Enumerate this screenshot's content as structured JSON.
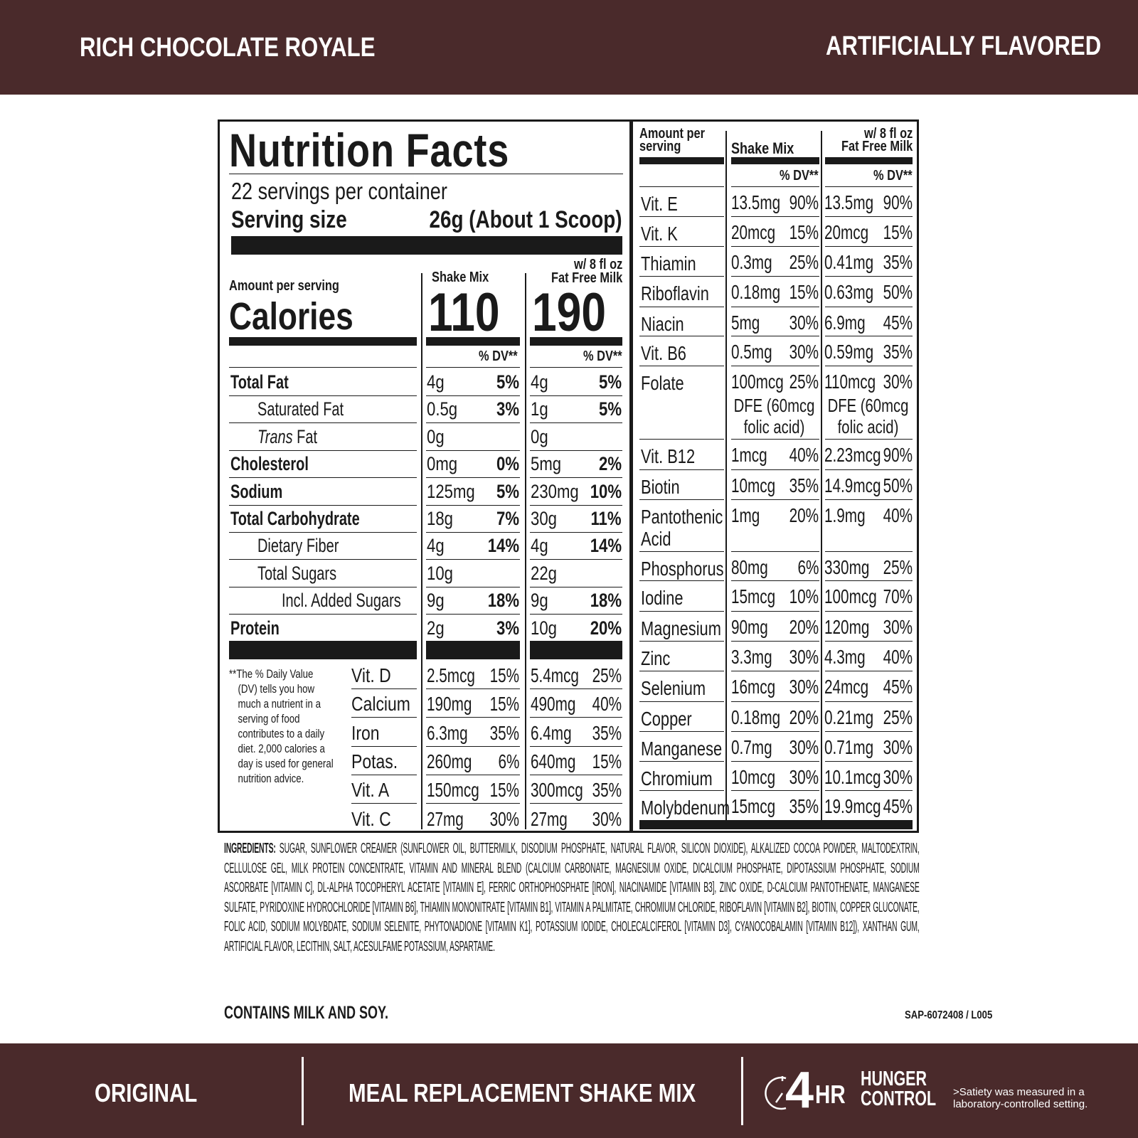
{
  "header": {
    "product_name": "RICH CHOCOLATE ROYALE",
    "flavor_note": "ARTIFICIALLY FLAVORED"
  },
  "label": {
    "title": "Nutrition Facts",
    "servings": "22 servings per container",
    "serving_size_label": "Serving size",
    "serving_size_value": "26g (About 1 Scoop)",
    "amount_per_serving": "Amount per serving",
    "calories_label": "Calories",
    "col_shake": "Shake Mix",
    "col_milk_line1": "w/ 8 fl oz",
    "col_milk_line2": "Fat Free Milk",
    "calories_shake": "110",
    "calories_milk": "190",
    "dv_header": "% DV**",
    "nutrients": [
      {
        "name": "Total Fat",
        "bold": true,
        "indent": 0,
        "shake": "4g",
        "shake_dv": "5%",
        "milk": "4g",
        "milk_dv": "5%"
      },
      {
        "name": "Saturated Fat",
        "bold": false,
        "indent": 1,
        "shake": "0.5g",
        "shake_dv": "3%",
        "milk": "1g",
        "milk_dv": "5%"
      },
      {
        "name": "Trans Fat",
        "italic_prefix": "Trans",
        "bold": false,
        "indent": 1,
        "shake": "0g",
        "shake_dv": "",
        "milk": "0g",
        "milk_dv": ""
      },
      {
        "name": "Cholesterol",
        "bold": true,
        "indent": 0,
        "shake": "0mg",
        "shake_dv": "0%",
        "milk": "5mg",
        "milk_dv": "2%"
      },
      {
        "name": "Sodium",
        "bold": true,
        "indent": 0,
        "shake": "125mg",
        "shake_dv": "5%",
        "milk": "230mg",
        "milk_dv": "10%"
      },
      {
        "name": "Total Carbohydrate",
        "bold": true,
        "indent": 0,
        "shake": "18g",
        "shake_dv": "7%",
        "milk": "30g",
        "milk_dv": "11%"
      },
      {
        "name": "Dietary Fiber",
        "bold": false,
        "indent": 1,
        "shake": "4g",
        "shake_dv": "14%",
        "milk": "4g",
        "milk_dv": "14%"
      },
      {
        "name": "Total Sugars",
        "bold": false,
        "indent": 1,
        "shake": "10g",
        "shake_dv": "",
        "milk": "22g",
        "milk_dv": ""
      },
      {
        "name": "Incl. Added Sugars",
        "bold": false,
        "indent": 2,
        "shake": "9g",
        "shake_dv": "18%",
        "milk": "9g",
        "milk_dv": "18%"
      },
      {
        "name": "Protein",
        "bold": true,
        "indent": 0,
        "shake": "2g",
        "shake_dv": "3%",
        "milk": "10g",
        "milk_dv": "20%"
      }
    ],
    "footnote": "**The % Daily Value (DV) tells you how much a nutrient in a serving of food contributes to a daily diet. 2,000 calories a day is used for general nutrition advice.",
    "vitamins_left": [
      {
        "name": "Vit. D",
        "shake": "2.5mcg",
        "shake_dv": "15%",
        "milk": "5.4mcg",
        "milk_dv": "25%"
      },
      {
        "name": "Calcium",
        "shake": "190mg",
        "shake_dv": "15%",
        "milk": "490mg",
        "milk_dv": "40%"
      },
      {
        "name": "Iron",
        "shake": "6.3mg",
        "shake_dv": "35%",
        "milk": "6.4mg",
        "milk_dv": "35%"
      },
      {
        "name": "Potas.",
        "shake": "260mg",
        "shake_dv": "6%",
        "milk": "640mg",
        "milk_dv": "15%"
      },
      {
        "name": "Vit. A",
        "shake": "150mcg",
        "shake_dv": "15%",
        "milk": "300mcg",
        "milk_dv": "35%"
      },
      {
        "name": "Vit. C",
        "shake": "27mg",
        "shake_dv": "30%",
        "milk": "27mg",
        "milk_dv": "30%"
      }
    ],
    "right_amount_per_serving_1": "Amount per",
    "right_amount_per_serving_2": "serving",
    "vitamins_right": [
      {
        "name": "Vit. E",
        "shake": "13.5mg",
        "shake_dv": "90%",
        "milk": "13.5mg",
        "milk_dv": "90%"
      },
      {
        "name": "Vit. K",
        "shake": "20mcg",
        "shake_dv": "15%",
        "milk": "20mcg",
        "milk_dv": "15%"
      },
      {
        "name": "Thiamin",
        "shake": "0.3mg",
        "shake_dv": "25%",
        "milk": "0.41mg",
        "milk_dv": "35%"
      },
      {
        "name": "Riboflavin",
        "shake": "0.18mg",
        "shake_dv": "15%",
        "milk": "0.63mg",
        "milk_dv": "50%"
      },
      {
        "name": "Niacin",
        "shake": "5mg",
        "shake_dv": "30%",
        "milk": "6.9mg",
        "milk_dv": "45%"
      },
      {
        "name": "Vit. B6",
        "shake": "0.5mg",
        "shake_dv": "30%",
        "milk": "0.59mg",
        "milk_dv": "35%"
      },
      {
        "name": "Folate",
        "shake": "100mcg",
        "shake_dv": "25%",
        "shake_extra": "DFE (60mcg folic acid)",
        "milk": "110mcg",
        "milk_dv": "30%",
        "milk_extra": "DFE (60mcg folic acid)"
      },
      {
        "name": "Vit. B12",
        "shake": "1mcg",
        "shake_dv": "40%",
        "milk": "2.23mcg",
        "milk_dv": "90%"
      },
      {
        "name": "Biotin",
        "shake": "10mcg",
        "shake_dv": "35%",
        "milk": "14.9mcg",
        "milk_dv": "50%"
      },
      {
        "name": "Pantothenic Acid",
        "shake": "1mg",
        "shake_dv": "20%",
        "milk": "1.9mg",
        "milk_dv": "40%"
      },
      {
        "name": "Phosphorus",
        "shake": "80mg",
        "shake_dv": "6%",
        "milk": "330mg",
        "milk_dv": "25%"
      },
      {
        "name": "Iodine",
        "shake": "15mcg",
        "shake_dv": "10%",
        "milk": "100mcg",
        "milk_dv": "70%"
      },
      {
        "name": "Magnesium",
        "shake": "90mg",
        "shake_dv": "20%",
        "milk": "120mg",
        "milk_dv": "30%"
      },
      {
        "name": "Zinc",
        "shake": "3.3mg",
        "shake_dv": "30%",
        "milk": "4.3mg",
        "milk_dv": "40%"
      },
      {
        "name": "Selenium",
        "shake": "16mcg",
        "shake_dv": "30%",
        "milk": "24mcg",
        "milk_dv": "45%"
      },
      {
        "name": "Copper",
        "shake": "0.18mg",
        "shake_dv": "20%",
        "milk": "0.21mg",
        "milk_dv": "25%"
      },
      {
        "name": "Manganese",
        "shake": "0.7mg",
        "shake_dv": "30%",
        "milk": "0.71mg",
        "milk_dv": "30%"
      },
      {
        "name": "Chromium",
        "shake": "10mcg",
        "shake_dv": "30%",
        "milk": "10.1mcg",
        "milk_dv": "30%"
      },
      {
        "name": "Molybdenum",
        "shake": "15mcg",
        "shake_dv": "35%",
        "milk": "19.9mcg",
        "milk_dv": "45%"
      }
    ]
  },
  "ingredients": {
    "label": "INGREDIENTS:",
    "text": "SUGAR, SUNFLOWER CREAMER (SUNFLOWER OIL, BUTTERMILK, DISODIUM PHOSPHATE, NATURAL FLAVOR, SILICON DIOXIDE), ALKALIZED COCOA POWDER, MALTODEXTRIN, CELLULOSE GEL, MILK PROTEIN CONCENTRATE, VITAMIN AND MINERAL BLEND (CALCIUM CARBONATE, MAGNESIUM OXIDE, DICALCIUM PHOSPHATE, DIPOTASSIUM PHOSPHATE, SODIUM ASCORBATE [VITAMIN C], DL-ALPHA TOCOPHERYL ACETATE [VITAMIN E], FERRIC ORTHOPHOSPHATE [IRON], NIACINAMIDE [VITAMIN B3], ZINC OXIDE, D-CALCIUM PANTOTHENATE, MANGANESE SULFATE, PYRIDOXINE HYDROCHLORIDE [VITAMIN B6], THIAMIN MONONITRATE [VITAMIN B1], VITAMIN A PALMITATE, CHROMIUM CHLORIDE, RIBOFLAVIN [VITAMIN B2], BIOTIN, COPPER GLUCONATE, FOLIC ACID, SODIUM MOLYBDATE, SODIUM SELENITE, PHYTONADIONE [VITAMIN K1], POTASSIUM IODIDE, CHOLECALCIFEROL [VITAMIN D3], CYANOCOBALAMIN [VITAMIN B12]), XANTHAN GUM, ARTIFICIAL FLAVOR, LECITHIN, SALT, ACESULFAME POTASSIUM, ASPARTAME.",
    "allergens": "CONTAINS MILK AND SOY.",
    "code": "SAP-6072408 / L005"
  },
  "footer": {
    "variant": "ORIGINAL",
    "product_type": "MEAL REPLACEMENT SHAKE MIX",
    "hunger_number": "4",
    "hunger_unit": "HR",
    "hunger_line1": "HUNGER",
    "hunger_line2": "CONTROL",
    "disclaimer_line1": ">Satiety was measured in a",
    "disclaimer_line2": "laboratory-controlled setting.",
    "clock_icon": "clock-icon"
  },
  "colors": {
    "brand_brown": "#4a2a2b",
    "label_black": "#1a1a1a"
  }
}
